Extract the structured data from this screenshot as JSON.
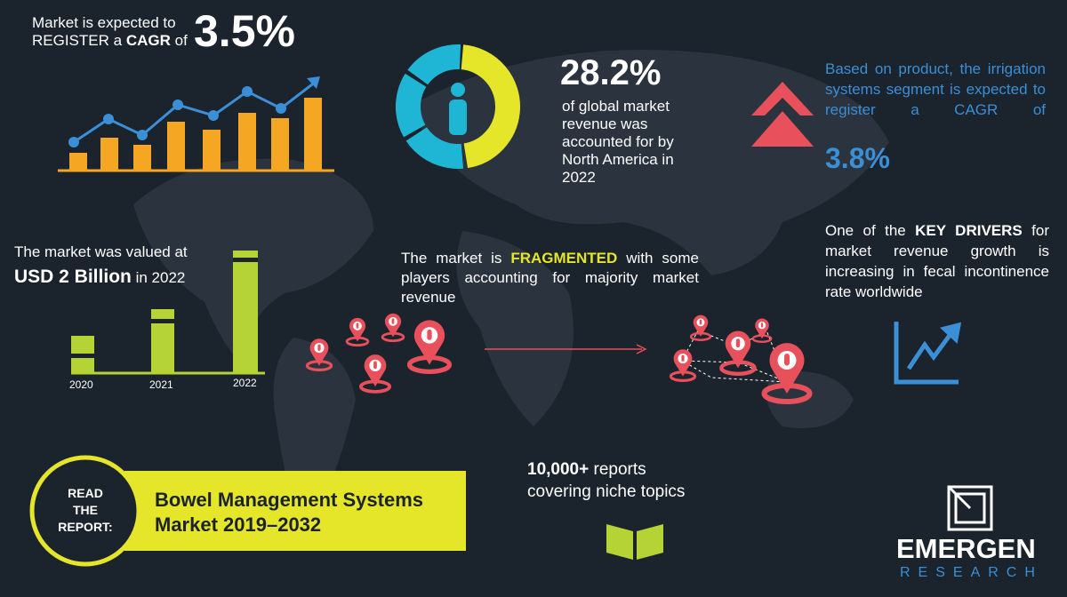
{
  "cagr": {
    "line1": "Market is expected to",
    "line2a": "REGISTER a",
    "line2b": "CAGR",
    "line2c": "of",
    "value": "3.5%"
  },
  "share": {
    "value": "28.2%",
    "text": "of global market revenue was accounted for by North America in 2022"
  },
  "product": {
    "text": "Based on product, the irrigation systems segment is expected to register a CAGR of",
    "value": "3.8%"
  },
  "valued": {
    "line1": "The market was valued at",
    "amount": "USD 2 Billion",
    "year": "in 2022",
    "years": [
      "2020",
      "2021",
      "2022"
    ]
  },
  "fragmented": {
    "pre": "The market is",
    "bold": "FRAGMENTED",
    "post": "with some players accounting for majority market revenue"
  },
  "drivers": {
    "pre": "One of the",
    "bold": "KEY DRIVERS",
    "post": "for market revenue growth is increasing in fecal incontinence rate worldwide"
  },
  "reports": {
    "bold": "10,000+",
    "rest": "reports covering niche topics"
  },
  "read": {
    "line1": "READ",
    "line2": "THE",
    "line3": "REPORT:",
    "title": "Bowel Management Systems Market 2019–2032"
  },
  "logo": {
    "name": "EMERGEN",
    "sub": "RESEARCH"
  }
}
